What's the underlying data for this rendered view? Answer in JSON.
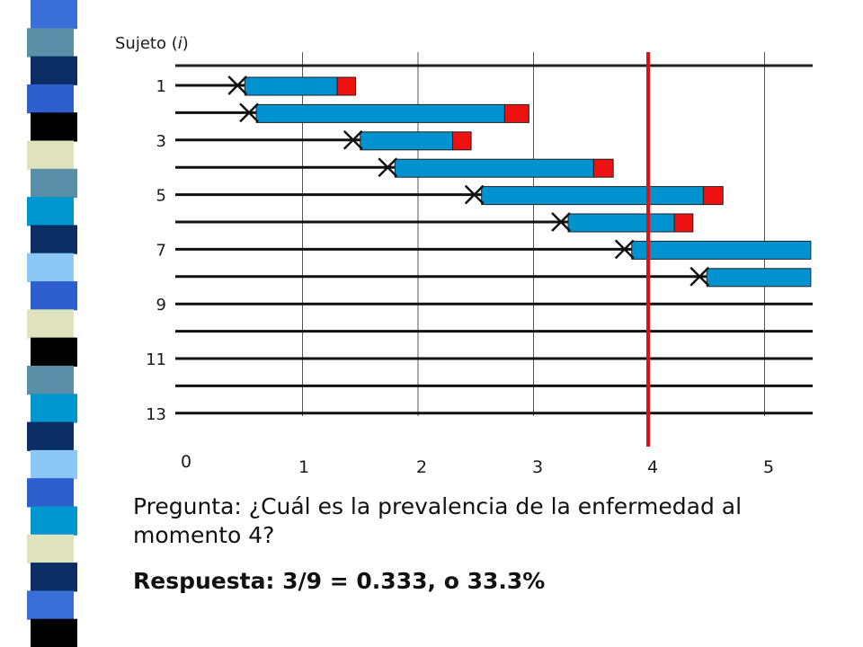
{
  "colors": {
    "bar": "#0093d0",
    "event": "#ee1111",
    "cut_line": "#dd1111",
    "stripe": [
      "#3a6fd8",
      "#5b8fa8",
      "#0a2e64",
      "#2f5fce",
      "#000000",
      "#dee2bd",
      "#5b8fa8",
      "#0096cf",
      "#0a2e64",
      "#8cc8f5",
      "#2f5fce",
      "#dee2bd",
      "#000000",
      "#5b8fa8",
      "#0096cf",
      "#0a2e64",
      "#8cc8f5",
      "#2f5fce",
      "#0096cf",
      "#dee2bd",
      "#0a2e64",
      "#3a6fd8",
      "#000000"
    ]
  },
  "diagram": {
    "y_axis_title_prefix": "Sujeto (",
    "y_axis_title_var": "i",
    "y_axis_title_suffix": ")",
    "y_labels": [
      "1",
      "3",
      "5",
      "7",
      "9",
      "11",
      "13"
    ],
    "x_labels": [
      "0",
      "1",
      "2",
      "3",
      "4",
      "5"
    ],
    "cut_time": 4,
    "subjects": [
      {
        "id": 1,
        "start": 0.5,
        "bar_end": 1.3,
        "event_end": 1.46
      },
      {
        "id": 2,
        "start": 0.6,
        "bar_end": 2.75,
        "event_end": 2.96
      },
      {
        "id": 3,
        "start": 1.5,
        "bar_end": 2.3,
        "event_end": 2.46
      },
      {
        "id": 4,
        "start": 1.8,
        "bar_end": 3.52,
        "event_end": 3.69
      },
      {
        "id": 5,
        "start": 2.55,
        "bar_end": 4.47,
        "event_end": 4.64
      },
      {
        "id": 6,
        "start": 3.3,
        "bar_end": 4.22,
        "event_end": 4.38
      },
      {
        "id": 7,
        "start": 3.85,
        "bar_end": 5.4,
        "event_end": null
      },
      {
        "id": 8,
        "start": 4.5,
        "bar_end": 5.4,
        "event_end": null
      },
      {
        "id": 9,
        "start": null,
        "bar_end": null,
        "event_end": null
      },
      {
        "id": 10,
        "start": null,
        "bar_end": null,
        "event_end": null
      },
      {
        "id": 11,
        "start": null,
        "bar_end": null,
        "event_end": null
      },
      {
        "id": 12,
        "start": null,
        "bar_end": null,
        "event_end": null
      },
      {
        "id": 13,
        "start": null,
        "bar_end": null,
        "event_end": null
      }
    ]
  },
  "question": "Pregunta: ¿Cuál es la prevalencia de la enfermedad al momento 4?",
  "answer": "Respuesta: 3/9 = 0.333, o 33.3%"
}
